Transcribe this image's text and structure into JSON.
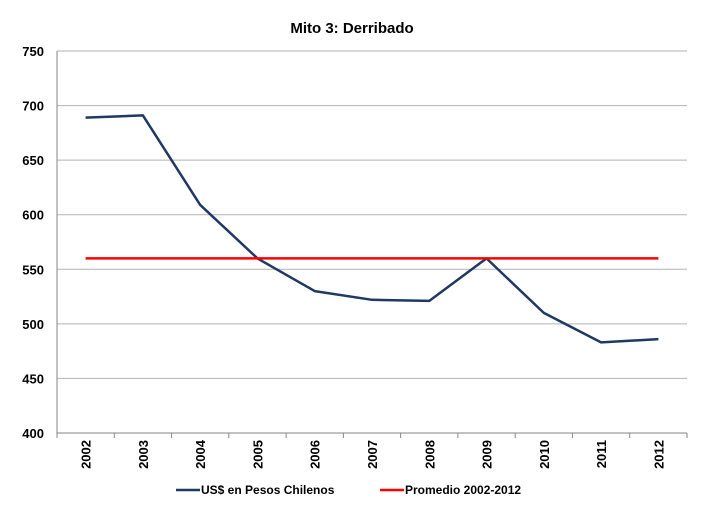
{
  "chart_data": {
    "type": "line",
    "title": "Mito 3: Derribado",
    "categories": [
      "2002",
      "2003",
      "2004",
      "2005",
      "2006",
      "2007",
      "2008",
      "2009",
      "2010",
      "2011",
      "2012"
    ],
    "yticks": [
      "400",
      "450",
      "500",
      "550",
      "600",
      "650",
      "700",
      "750"
    ],
    "ylim": [
      400,
      750
    ],
    "grid": true,
    "legend_position": "bottom",
    "series": [
      {
        "name": "US$ en Pesos Chilenos",
        "color": "#1f3864",
        "values": [
          689,
          691,
          609,
          560,
          530,
          522,
          521,
          560,
          510,
          483,
          486
        ]
      },
      {
        "name": "Promedio 2002-2012",
        "color": "#ff0000",
        "values": [
          560,
          560,
          560,
          560,
          560,
          560,
          560,
          560,
          560,
          560,
          560
        ]
      }
    ]
  }
}
